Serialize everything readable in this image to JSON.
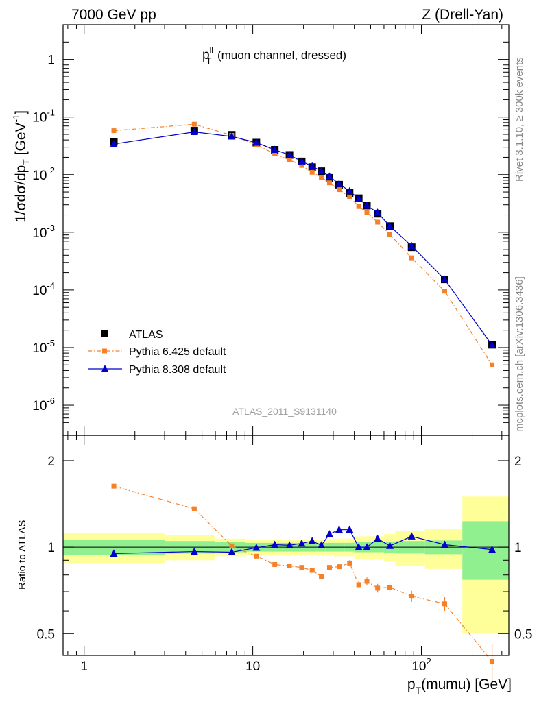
{
  "header": {
    "left": "7000 GeV pp",
    "right": "Z (Drell-Yan)"
  },
  "side_labels": {
    "rivet": "Rivet 3.1.10, ≥ 300k events",
    "mcplots": "mcplots.cern.ch [arXiv:1306.3436]"
  },
  "chart_data": [
    {
      "type": "scatter",
      "panel": "main",
      "title": "p_T^ll (muon channel, dressed)",
      "title_parts": {
        "main": "p",
        "sup": "ll",
        "sub": "T",
        "rest": " (muon channel, dressed)"
      },
      "ylabel": "1/σdσ/dp_T [GeV⁻¹]",
      "ylabel_parts": {
        "a": "1/σdσ/dp",
        "sub": "T",
        "b": " [GeV",
        "sup": "-1",
        "c": "]"
      },
      "watermark": "ATLAS_2011_S9131140",
      "xscale": "log",
      "yscale": "log",
      "xlim": [
        0.75,
        330
      ],
      "ylim": [
        3e-07,
        4
      ],
      "xticks": [
        1,
        10,
        100
      ],
      "yticks": [
        "1e-6",
        "1e-5",
        "1e-4",
        "1e-3",
        "1e-2",
        "1e-1",
        "1"
      ],
      "ytick_labels": [
        {
          "base": "10",
          "exp": "-6"
        },
        {
          "base": "10",
          "exp": "-5"
        },
        {
          "base": "10",
          "exp": "-4"
        },
        {
          "base": "10",
          "exp": "-3"
        },
        {
          "base": "10",
          "exp": "-2"
        },
        {
          "base": "10",
          "exp": "-1"
        },
        {
          "base": "1",
          "exp": ""
        }
      ],
      "legend_position": "bottom-left",
      "series": [
        {
          "name": "ATLAS",
          "color": "#000000",
          "marker": "square",
          "x": [
            1.5,
            4.5,
            7.5,
            10.5,
            13.5,
            16.5,
            19.5,
            22.5,
            25.5,
            28.5,
            32.5,
            37.5,
            42.5,
            47.5,
            55,
            65,
            87.5,
            137.5,
            262.5
          ],
          "y": [
            0.037,
            0.058,
            0.049,
            0.036,
            0.027,
            0.022,
            0.017,
            0.0135,
            0.0115,
            0.0088,
            0.0067,
            0.0048,
            0.0039,
            0.0029,
            0.0021,
            0.00128,
            0.00055,
            0.000152,
            1.12e-05
          ]
        },
        {
          "name": "Pythia 6.425 default",
          "color": "#f5802a",
          "marker": "square-small",
          "line": "dash-dot",
          "x": [
            1.5,
            4.5,
            7.5,
            10.5,
            13.5,
            16.5,
            19.5,
            22.5,
            25.5,
            28.5,
            32.5,
            37.5,
            42.5,
            47.5,
            55,
            65,
            87.5,
            137.5,
            262.5
          ],
          "y": [
            0.058,
            0.075,
            0.048,
            0.033,
            0.023,
            0.018,
            0.0145,
            0.011,
            0.009,
            0.0072,
            0.0055,
            0.0041,
            0.0028,
            0.0022,
            0.0015,
            0.00092,
            0.00036,
            9.5e-05,
            5e-06
          ]
        },
        {
          "name": "Pythia 8.308 default",
          "color": "#0000cc",
          "marker": "triangle",
          "line": "solid",
          "x": [
            1.5,
            4.5,
            7.5,
            10.5,
            13.5,
            16.5,
            19.5,
            22.5,
            25.5,
            28.5,
            32.5,
            37.5,
            42.5,
            47.5,
            55,
            65,
            87.5,
            137.5,
            262.5
          ],
          "y": [
            0.034,
            0.055,
            0.046,
            0.036,
            0.027,
            0.022,
            0.017,
            0.014,
            0.0115,
            0.0093,
            0.0069,
            0.0052,
            0.0038,
            0.0029,
            0.0022,
            0.00128,
            0.00058,
            0.000152,
            1.1e-05
          ]
        }
      ]
    },
    {
      "type": "line",
      "panel": "ratio",
      "ylabel": "Ratio to ATLAS",
      "xlabel": "p_T(mumu) [GeV]",
      "xlabel_parts": {
        "a": "p",
        "sub": "T",
        "b": "(mumu) [GeV]"
      },
      "xscale": "log",
      "yscale": "log",
      "xlim": [
        0.75,
        330
      ],
      "ylim": [
        0.42,
        2.45
      ],
      "yticks": [
        0.5,
        1,
        2
      ],
      "ytick_labels": [
        "0.5",
        "1",
        "2"
      ],
      "xtick_labels": [
        {
          "base": "1",
          "exp": ""
        },
        {
          "base": "10",
          "exp": ""
        },
        {
          "base": "10",
          "exp": "2"
        }
      ],
      "bands": {
        "bin_edges": [
          0.75,
          3,
          6,
          9,
          12,
          15,
          18,
          21,
          24,
          27,
          30,
          35,
          40,
          45,
          50,
          60,
          70,
          105,
          175,
          330
        ],
        "stat_half_width": [
          0.06,
          0.05,
          0.04,
          0.035,
          0.035,
          0.035,
          0.035,
          0.035,
          0.035,
          0.035,
          0.035,
          0.035,
          0.04,
          0.04,
          0.04,
          0.045,
          0.05,
          0.055,
          0.23
        ],
        "total_half_width": [
          0.12,
          0.1,
          0.07,
          0.06,
          0.06,
          0.06,
          0.06,
          0.06,
          0.06,
          0.06,
          0.07,
          0.07,
          0.09,
          0.09,
          0.09,
          0.11,
          0.14,
          0.16,
          0.5
        ],
        "stat_color": "#90f090",
        "syst_color": "#ffff99"
      },
      "series": [
        {
          "name": "Pythia 6.425 default",
          "color": "#f5802a",
          "marker": "square-small",
          "line": "dash-dot",
          "x": [
            1.5,
            4.5,
            7.5,
            10.5,
            13.5,
            16.5,
            19.5,
            22.5,
            25.5,
            28.5,
            32.5,
            37.5,
            42.5,
            47.5,
            55,
            65,
            87.5,
            137.5,
            262.5
          ],
          "y": [
            1.63,
            1.36,
            1.01,
            0.93,
            0.87,
            0.86,
            0.85,
            0.83,
            0.79,
            0.85,
            0.855,
            0.88,
            0.74,
            0.76,
            0.72,
            0.725,
            0.675,
            0.635,
            0.4
          ],
          "err": [
            0,
            0,
            0,
            0,
            0,
            0,
            0,
            0,
            0.015,
            0.015,
            0.015,
            0.02,
            0.02,
            0.025,
            0.025,
            0.025,
            0.03,
            0.035,
            0.06
          ]
        },
        {
          "name": "Pythia 8.308 default",
          "color": "#0000cc",
          "marker": "triangle",
          "line": "solid",
          "x": [
            1.5,
            4.5,
            7.5,
            10.5,
            13.5,
            16.5,
            19.5,
            22.5,
            25.5,
            28.5,
            32.5,
            37.5,
            42.5,
            47.5,
            55,
            65,
            87.5,
            137.5,
            262.5
          ],
          "y": [
            0.95,
            0.965,
            0.96,
            0.995,
            1.02,
            1.015,
            1.03,
            1.05,
            1.015,
            1.11,
            1.15,
            1.15,
            1.0,
            1.0,
            1.07,
            1.01,
            1.09,
            1.02,
            0.98
          ]
        }
      ]
    }
  ]
}
